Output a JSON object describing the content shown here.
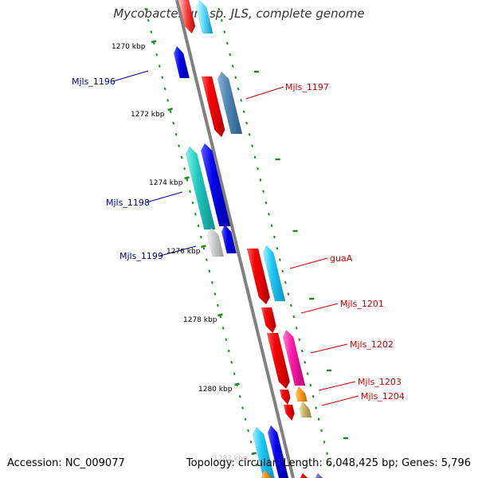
{
  "title": "Mycobacterium sp. JLS, complete genome",
  "footer": {
    "accession": "Accession: NC_009077",
    "summary": "Topology: circular; Length: 6,048,425 bp; Genes: 5,796"
  },
  "colors": {
    "backbone": "#808080",
    "ticks": "#1e8c1e",
    "label_forward": "#cc0000",
    "label_reverse": "#00008b"
  },
  "ruler": [
    {
      "label": "1270 kbp",
      "kb": 1270
    },
    {
      "label": "1272 kbp",
      "kb": 1272
    },
    {
      "label": "1274 kbp",
      "kb": 1274
    },
    {
      "label": "1276 kbp",
      "kb": 1276
    },
    {
      "label": "1278 kbp",
      "kb": 1278
    },
    {
      "label": "1280 kbp",
      "kb": 1280
    },
    {
      "label": "1282 kbp",
      "kb": 1282
    }
  ],
  "gene_labels": [
    {
      "text": "Mjls_1196",
      "strand": "reverse"
    },
    {
      "text": "Mjls_1197",
      "strand": "forward"
    },
    {
      "text": "Mjls_1198",
      "strand": "reverse"
    },
    {
      "text": "Mjls_1199",
      "strand": "reverse"
    },
    {
      "text": "guaA",
      "strand": "forward"
    },
    {
      "text": "Mjls_1201",
      "strand": "forward"
    },
    {
      "text": "Mjls_1202",
      "strand": "forward"
    },
    {
      "text": "Mjls_1203",
      "strand": "forward"
    },
    {
      "text": "Mjls_1204",
      "strand": "forward"
    }
  ]
}
